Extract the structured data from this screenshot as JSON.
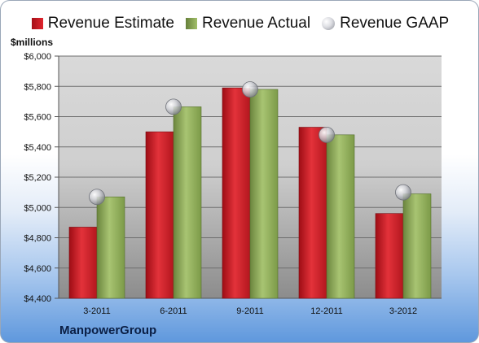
{
  "legend": {
    "estimate": "Revenue Estimate",
    "actual": "Revenue Actual",
    "gaap": "Revenue GAAP"
  },
  "units_label": "$millions",
  "company": "ManpowerGroup",
  "colors": {
    "estimate": "#d4252c",
    "actual": "#8faf5a",
    "gaap": "#c8c9ce",
    "plot_bg_top": "#d9d9d9",
    "plot_bg_bottom": "#8f8f8f",
    "background_bottom": "#5f98dd"
  },
  "chart_data": {
    "type": "bar",
    "categories": [
      "3-2011",
      "6-2011",
      "9-2011",
      "12-2011",
      "3-2012"
    ],
    "ylim": [
      4400,
      6000
    ],
    "yticks": [
      4400,
      4600,
      4800,
      5000,
      5200,
      5400,
      5600,
      5800,
      6000
    ],
    "ytick_labels": [
      "$4,400",
      "$4,600",
      "$4,800",
      "$5,000",
      "$5,200",
      "$5,400",
      "$5,600",
      "$5,800",
      "$6,000"
    ],
    "ylabel": "$millions",
    "xlabel": "",
    "grid": true,
    "legend_position": "top",
    "series": [
      {
        "name": "Revenue Estimate",
        "kind": "bar",
        "values": [
          4870,
          5500,
          5790,
          5530,
          4960
        ]
      },
      {
        "name": "Revenue Actual",
        "kind": "bar",
        "values": [
          5070,
          5665,
          5780,
          5480,
          5090
        ]
      },
      {
        "name": "Revenue GAAP",
        "kind": "point",
        "values": [
          5070,
          5665,
          5780,
          5480,
          5100
        ]
      }
    ]
  }
}
